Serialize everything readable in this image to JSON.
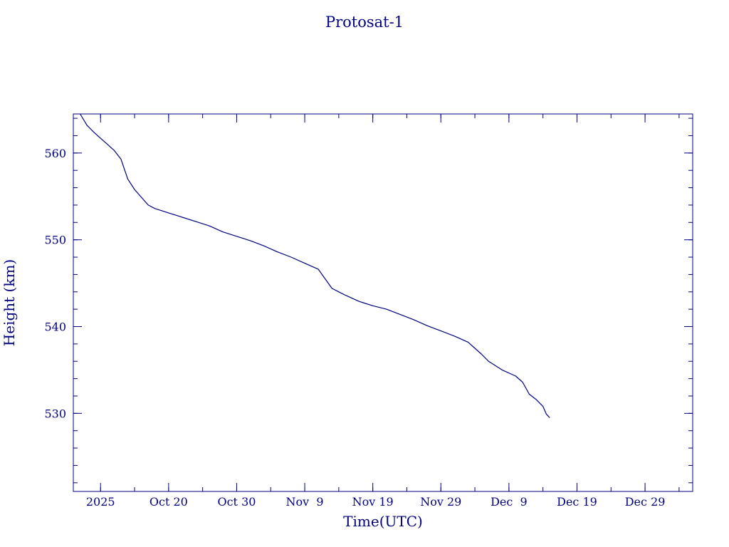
{
  "chart_data": {
    "type": "line",
    "title": "Protosat-1",
    "xlabel": "Time(UTC)",
    "ylabel": "Height (km)",
    "color": "#000080",
    "background": "#ffffff",
    "grid": false,
    "legend": "none",
    "xlim": [
      "2025-10-06",
      "2026-01-05"
    ],
    "ylim": [
      521,
      564.5
    ],
    "x_ticks": [
      {
        "value": "2025-10-10",
        "label": "2025"
      },
      {
        "value": "2025-10-20",
        "label": "Oct 20"
      },
      {
        "value": "2025-10-30",
        "label": "Oct 30"
      },
      {
        "value": "2025-11-09",
        "label": "Nov  9"
      },
      {
        "value": "2025-11-19",
        "label": "Nov 19"
      },
      {
        "value": "2025-11-29",
        "label": "Nov 29"
      },
      {
        "value": "2025-12-09",
        "label": "Dec  9"
      },
      {
        "value": "2025-12-19",
        "label": "Dec 19"
      },
      {
        "value": "2025-12-29",
        "label": "Dec 29"
      }
    ],
    "y_ticks": [
      {
        "value": 530,
        "label": "530"
      },
      {
        "value": 540,
        "label": "540"
      },
      {
        "value": 550,
        "label": "550"
      },
      {
        "value": 560,
        "label": "560"
      }
    ],
    "x_minor_step_days": 5,
    "y_minor_step": 2,
    "series": [
      {
        "x": [
          "2025-10-07",
          "2025-10-08",
          "2025-10-09",
          "2025-10-10",
          "2025-10-11",
          "2025-10-12",
          "2025-10-13",
          "2025-10-14",
          "2025-10-15",
          "2025-10-16",
          "2025-10-17",
          "2025-10-18",
          "2025-10-20",
          "2025-10-22",
          "2025-10-24",
          "2025-10-26",
          "2025-10-28",
          "2025-10-30",
          "2025-11-01",
          "2025-11-03",
          "2025-11-05",
          "2025-11-07",
          "2025-11-09",
          "2025-11-11",
          "2025-11-12",
          "2025-11-13",
          "2025-11-14",
          "2025-11-15",
          "2025-11-17",
          "2025-11-19",
          "2025-11-21",
          "2025-11-23",
          "2025-11-25",
          "2025-11-27",
          "2025-11-29",
          "2025-12-01",
          "2025-12-03",
          "2025-12-04",
          "2025-12-05",
          "2025-12-06",
          "2025-12-08",
          "2025-12-10",
          "2025-12-11",
          "2025-12-12",
          "2025-12-13",
          "2025-12-14",
          "2025-12-14T12:00",
          "2025-12-15"
        ],
        "y": [
          564.5,
          563.2,
          562.4,
          561.7,
          561.0,
          560.3,
          559.3,
          557.0,
          555.8,
          554.9,
          554.0,
          553.6,
          553.1,
          552.6,
          552.1,
          551.6,
          550.9,
          550.4,
          549.9,
          549.3,
          548.6,
          548.0,
          547.3,
          546.6,
          545.5,
          544.4,
          544.0,
          543.6,
          542.9,
          542.4,
          542.0,
          541.4,
          540.8,
          540.1,
          539.5,
          538.9,
          538.2,
          537.5,
          536.8,
          536.0,
          535.0,
          534.3,
          533.6,
          532.2,
          531.6,
          530.8,
          529.9,
          529.5
        ]
      }
    ]
  }
}
